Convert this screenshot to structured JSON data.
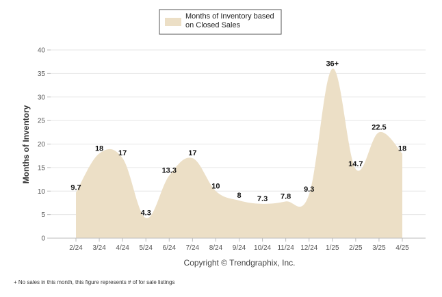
{
  "chart_data": {
    "type": "area",
    "categories": [
      "2/24",
      "3/24",
      "4/24",
      "5/24",
      "6/24",
      "7/24",
      "8/24",
      "9/24",
      "10/24",
      "11/24",
      "12/24",
      "1/25",
      "2/25",
      "3/25",
      "4/25"
    ],
    "series": [
      {
        "name": "Months of Inventory based on Closed Sales",
        "values": [
          9.7,
          18,
          17,
          4.3,
          13.3,
          17,
          10,
          8,
          7.3,
          7.8,
          9.3,
          36,
          14.7,
          22.5,
          18
        ],
        "point_labels": [
          "9.7",
          "18",
          "17",
          "4.3",
          "13.3",
          "17",
          "10",
          "8",
          "7.3",
          "7.8",
          "9.3",
          "36+",
          "14.7",
          "22.5",
          "18"
        ]
      }
    ],
    "legend_lines": [
      "Months of Inventory based",
      "on Closed Sales"
    ],
    "ylabel": "Months of Inventory",
    "xlabel": "",
    "ylim": [
      0,
      40
    ],
    "yticks": [
      0,
      5,
      10,
      15,
      20,
      25,
      30,
      35,
      40
    ],
    "grid": true,
    "legend_position": "top-center",
    "fill_color": "#ecdfc6",
    "copyright": "Copyright © Trendgraphix, Inc.",
    "footnote": "+  No sales in this month, this figure represents # of for sale listings"
  }
}
